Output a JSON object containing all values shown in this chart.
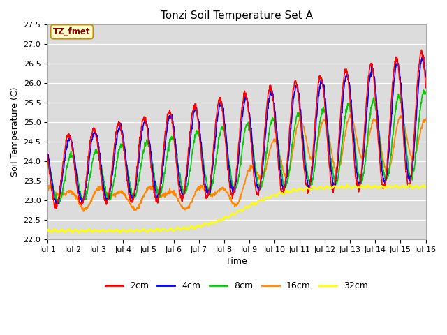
{
  "title": "Tonzi Soil Temperature Set A",
  "xlabel": "Time",
  "ylabel": "Soil Temperature (C)",
  "ylim": [
    22.0,
    27.5
  ],
  "yticks": [
    22.0,
    22.5,
    23.0,
    23.5,
    24.0,
    24.5,
    25.0,
    25.5,
    26.0,
    26.5,
    27.0,
    27.5
  ],
  "xtick_labels": [
    "Jul 1",
    "Jul 2",
    "Jul 3",
    "Jul 4",
    "Jul 5",
    "Jul 6",
    "Jul 7",
    "Jul 8",
    "Jul 9",
    "Jul 10",
    "Jul 11",
    "Jul 12",
    "Jul 13",
    "Jul 14",
    "Jul 15",
    "Jul 16"
  ],
  "label_annotation": "TZ_fmet",
  "series_colors": [
    "#ff0000",
    "#0000ff",
    "#00cc00",
    "#ff8800",
    "#ffff00"
  ],
  "series_labels": [
    "2cm",
    "4cm",
    "8cm",
    "16cm",
    "32cm"
  ],
  "linewidth": 1.2,
  "n_days": 15,
  "pts_per_day": 96
}
